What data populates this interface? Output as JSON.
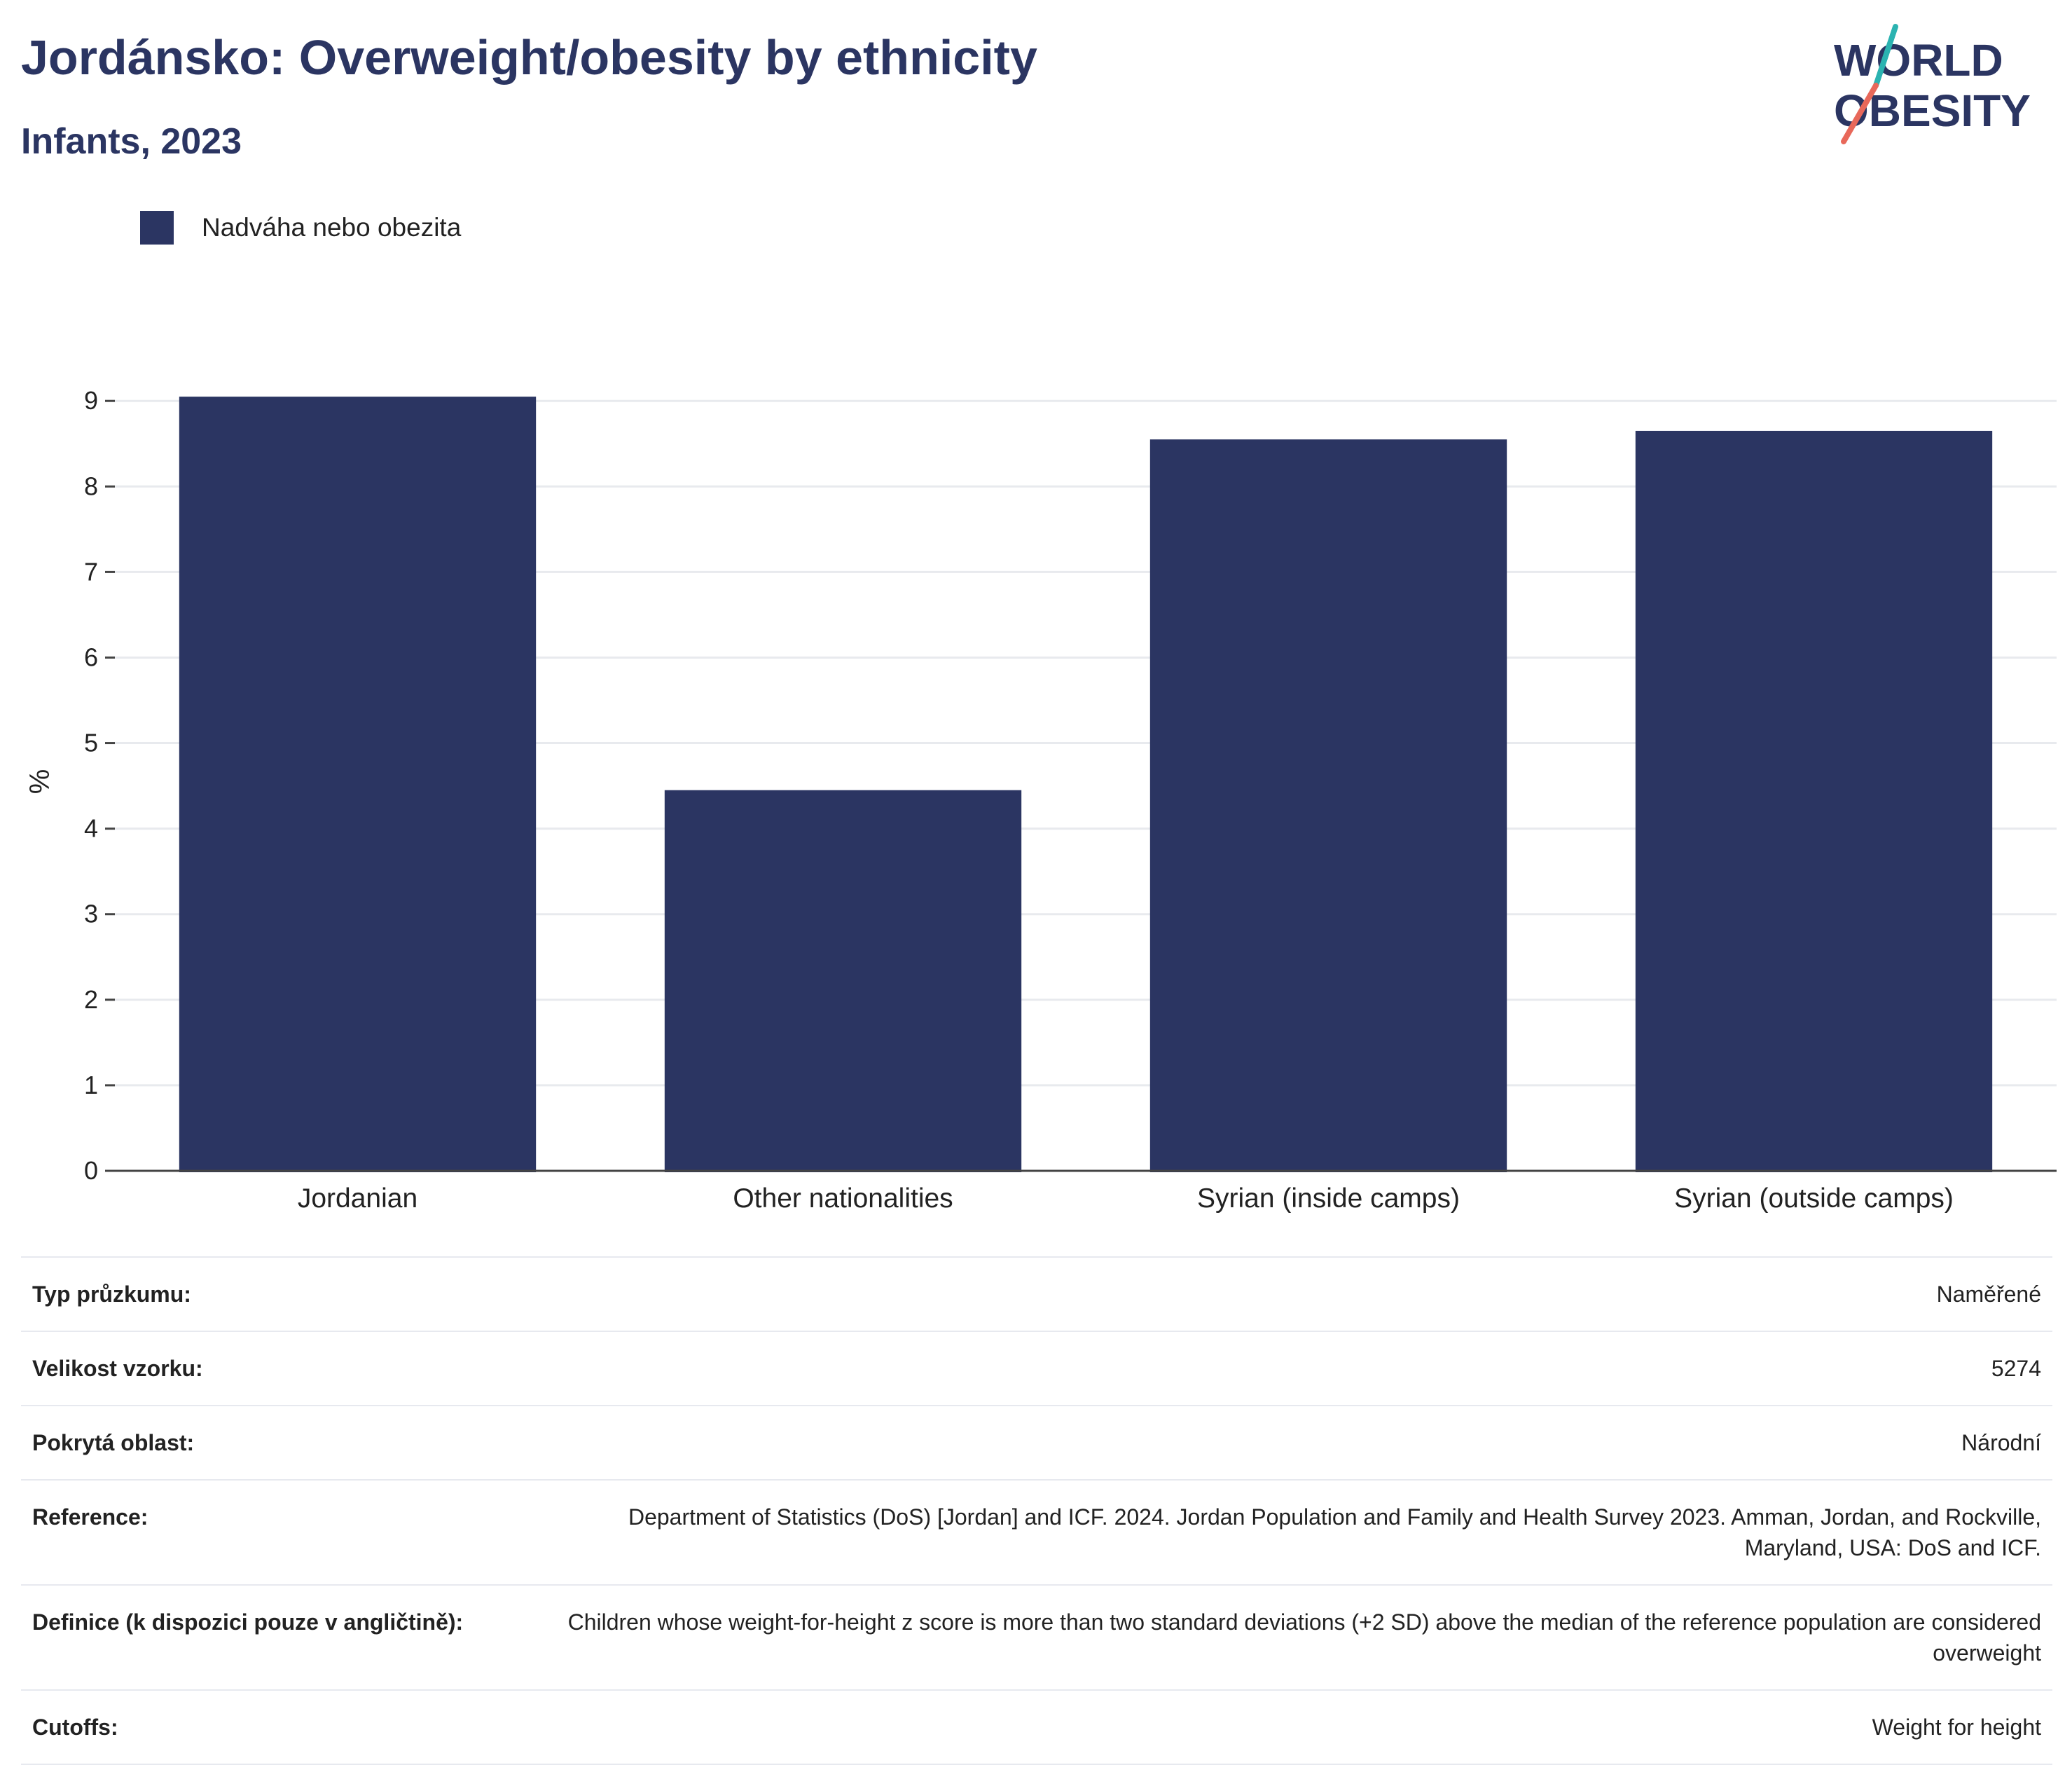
{
  "header": {
    "title": "Jordánsko: Overweight/obesity by ethnicity",
    "subtitle": "Infants, 2023"
  },
  "logo": {
    "line1": "WORLD",
    "line2": "OBESITY",
    "colors": {
      "text": "#2b3562",
      "slash_top": "#2bb3b1",
      "slash_bottom": "#e8685a"
    }
  },
  "legend": {
    "label": "Nadváha nebo obezita"
  },
  "chart_data": {
    "type": "bar",
    "categories": [
      "Jordanian",
      "Other nationalities",
      "Syrian (inside camps)",
      "Syrian (outside camps)"
    ],
    "series": [
      {
        "name": "Nadváha nebo obezita",
        "values": [
          9.05,
          4.45,
          8.55,
          8.65
        ],
        "color": "#2b3562"
      }
    ],
    "title": "Jordánsko: Overweight/obesity by ethnicity",
    "subtitle": "Infants, 2023",
    "xlabel": "",
    "ylabel": "%",
    "ylim": [
      0,
      9.1
    ],
    "yticks": [
      0,
      1,
      2,
      3,
      4,
      5,
      6,
      7,
      8,
      9
    ],
    "grid": true,
    "legend_position": "top-left"
  },
  "info": {
    "rows": [
      {
        "label": "Typ průzkumu:",
        "value": "Naměřené"
      },
      {
        "label": "Velikost vzorku:",
        "value": "5274"
      },
      {
        "label": "Pokrytá oblast:",
        "value": "Národní"
      },
      {
        "label": "Reference:",
        "value": "Department of Statistics (DoS) [Jordan] and ICF. 2024. Jordan Population and Family and Health Survey 2023. Amman, Jordan, and Rockville, Maryland, USA: DoS and ICF."
      },
      {
        "label": "Definice (k dispozici pouze v angličtině):",
        "value": "Children whose weight-for-height z score is more than two standard deviations (+2 SD) above the median of the reference population are considered overweight"
      },
      {
        "label": "Cutoffs:",
        "value": "Weight for height"
      }
    ]
  }
}
